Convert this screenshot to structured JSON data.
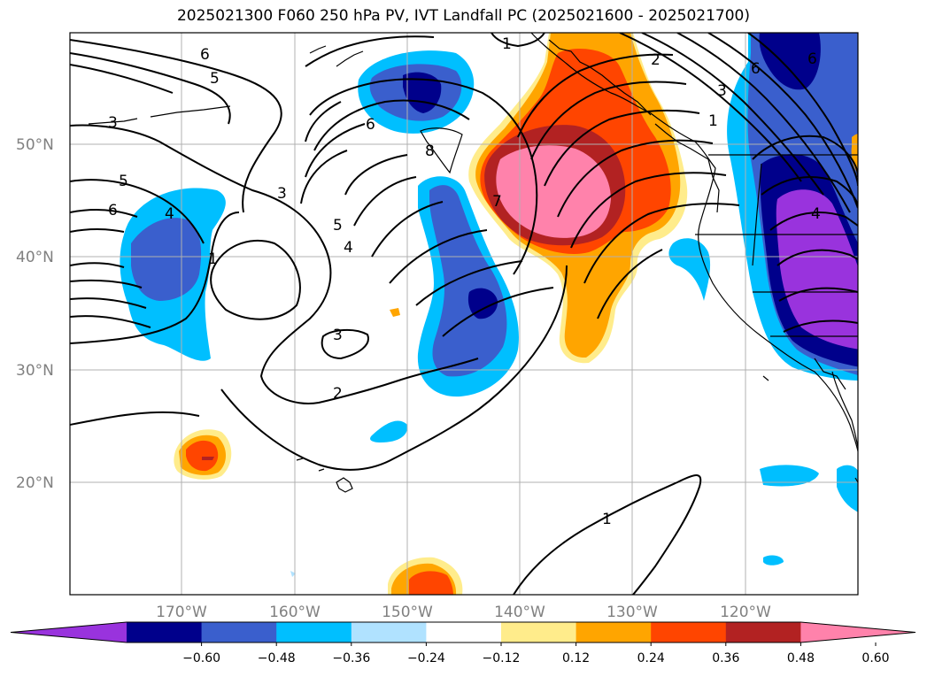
{
  "title": "2025021300 F060 250 hPa PV, IVT Landfall PC (2025021600 - 2025021700)",
  "latitude_labels": [
    "50°N",
    "40°N",
    "30°N",
    "20°N"
  ],
  "longitude_labels": [
    "170°W",
    "160°W",
    "150°W",
    "140°W",
    "130°W",
    "120°W"
  ],
  "contour_labels": [
    "6",
    "5",
    "3",
    "5",
    "6",
    "4",
    "1",
    "3",
    "5",
    "4",
    "3",
    "2",
    "6",
    "8",
    "1",
    "2",
    "3",
    "1",
    "7",
    "6",
    "4",
    "6",
    "1"
  ],
  "colorbar": {
    "ticks": [
      "−0.60",
      "−0.48",
      "−0.36",
      "−0.24",
      "−0.12",
      "0.12",
      "0.24",
      "0.36",
      "0.48",
      "0.60"
    ],
    "colors": [
      "#9933dd",
      "#00008b",
      "#3a5fcd",
      "#00bfff",
      "#b0e2ff",
      "#ffffff",
      "#ffec8b",
      "#ffa500",
      "#ff4500",
      "#b22222",
      "#ff82ab"
    ]
  },
  "colors": {
    "neg_strong": "#00008b",
    "neg_mid": "#3a5fcd",
    "neg_light": "#00bfff",
    "neg_faint": "#b0e2ff",
    "pos_faint": "#ffec8b",
    "pos_light": "#ffa500",
    "pos_mid": "#ff4500",
    "pos_strong": "#b22222",
    "pos_max": "#ff82ab",
    "purple": "#9933dd"
  }
}
